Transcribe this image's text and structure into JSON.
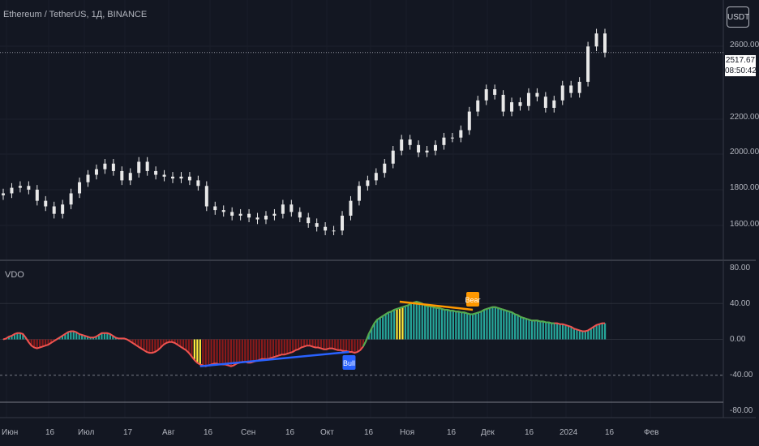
{
  "header": {
    "symbol_line": "Ethereum / TetherUS, 1Д, BINANCE",
    "currency": "USDT"
  },
  "price_tag": {
    "price": "2517.67",
    "countdown": "08:50:42"
  },
  "indicator": {
    "name": "VDO",
    "bull_label": "Bull",
    "bear_label": "Bear"
  },
  "colors": {
    "background": "#131722",
    "candle": "#e8e8e8",
    "up_hist": "#26a69a",
    "down_hist": "#8b1a1a",
    "highlight_hist": "#ffeb3b",
    "line_up": "#4caf50",
    "line_down": "#ef5350",
    "bull": "#2962ff",
    "bear": "#ff9800"
  },
  "chart_data": [
    {
      "type": "candlestick",
      "title": "Ethereum / TetherUS, 1Д, BINANCE",
      "y_ticks": [
        "2600.00",
        "2200.00",
        "2000.00",
        "1800.00",
        "1600.00"
      ],
      "ylim": [
        1400,
        2800
      ],
      "x_ticks": [
        "Июн",
        "16",
        "Июл",
        "17",
        "Авг",
        "16",
        "Сен",
        "16",
        "Окт",
        "16",
        "Ноя",
        "16",
        "Дек",
        "16",
        "2024",
        "16",
        "Фев"
      ],
      "last_price": 2517.67,
      "close_series": [
        1760,
        1790,
        1800,
        1780,
        1720,
        1690,
        1650,
        1700,
        1760,
        1820,
        1860,
        1890,
        1920,
        1880,
        1830,
        1870,
        1930,
        1880,
        1860,
        1850,
        1840,
        1850,
        1830,
        1800,
        1690,
        1670,
        1660,
        1640,
        1650,
        1630,
        1620,
        1640,
        1650,
        1700,
        1660,
        1630,
        1600,
        1580,
        1560,
        1560,
        1640,
        1720,
        1800,
        1830,
        1870,
        1920,
        1990,
        2050,
        2020,
        1980,
        1990,
        2020,
        2060,
        2060,
        2100,
        2200,
        2260,
        2320,
        2290,
        2200,
        2250,
        2230,
        2300,
        2280,
        2220,
        2260,
        2340,
        2300,
        2360,
        2550,
        2620,
        2517
      ]
    },
    {
      "type": "bar",
      "title": "VDO",
      "y_ticks": [
        "80.00",
        "40.00",
        "0.00",
        "-40.00",
        "-80.00"
      ],
      "ylim": [
        -80,
        80
      ],
      "values": [
        0,
        1,
        3,
        4,
        6,
        7,
        7,
        6,
        2,
        -3,
        -7,
        -9,
        -10,
        -9,
        -8,
        -7,
        -6,
        -4,
        -2,
        0,
        2,
        4,
        6,
        8,
        9,
        9,
        8,
        6,
        5,
        4,
        3,
        2,
        2,
        3,
        5,
        7,
        7,
        7,
        6,
        4,
        2,
        1,
        1,
        1,
        0,
        -2,
        -4,
        -6,
        -8,
        -10,
        -12,
        -14,
        -15,
        -15,
        -14,
        -12,
        -9,
        -6,
        -4,
        -3,
        -3,
        -4,
        -6,
        -8,
        -10,
        -12,
        -15,
        -19,
        -23,
        -26,
        -28,
        -29,
        -30,
        -29,
        -28,
        -27,
        -27,
        -28,
        -28,
        -28,
        -29,
        -30,
        -29,
        -27,
        -26,
        -25,
        -25,
        -26,
        -26,
        -25,
        -24,
        -23,
        -22,
        -22,
        -22,
        -21,
        -20,
        -19,
        -18,
        -17,
        -17,
        -16,
        -15,
        -14,
        -12,
        -11,
        -9,
        -8,
        -7,
        -7,
        -8,
        -9,
        -9,
        -10,
        -11,
        -11,
        -10,
        -10,
        -11,
        -12,
        -12,
        -13,
        -13,
        -14,
        -14,
        -15,
        -14,
        -12,
        -8,
        -2,
        6,
        12,
        18,
        22,
        24,
        26,
        28,
        30,
        31,
        33,
        34,
        35,
        36,
        37,
        38,
        40,
        41,
        42,
        41,
        40,
        38,
        37,
        37,
        36,
        35,
        35,
        34,
        33,
        33,
        32,
        32,
        31,
        31,
        30,
        30,
        29,
        28,
        28,
        29,
        30,
        31,
        33,
        34,
        35,
        36,
        36,
        35,
        34,
        33,
        32,
        31,
        30,
        28,
        27,
        25,
        24,
        23,
        22,
        21,
        21,
        21,
        20,
        20,
        19,
        19,
        18,
        18,
        18,
        17,
        17,
        16,
        15,
        14,
        12,
        11,
        10,
        9,
        9,
        10,
        12,
        14,
        16,
        17,
        18,
        18
      ],
      "divergences": [
        {
          "label": "Bull",
          "from": -30,
          "to": -14
        },
        {
          "label": "Bear",
          "from": 42,
          "to": 33
        }
      ]
    }
  ]
}
